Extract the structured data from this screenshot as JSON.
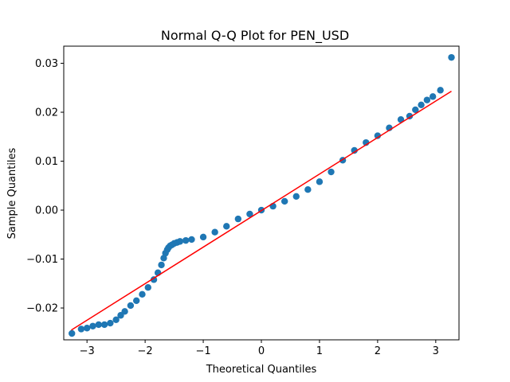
{
  "chart_data": {
    "type": "scatter",
    "title": "Normal Q-Q Plot for PEN_USD",
    "xlabel": "Theoretical Quantiles",
    "ylabel": "Sample Quantiles",
    "xlim": [
      -3.4,
      3.4
    ],
    "ylim": [
      -0.0265,
      0.0335
    ],
    "xticks": [
      -3,
      -2,
      -1,
      0,
      1,
      2,
      3
    ],
    "xtick_labels": [
      "−3",
      "−2",
      "−1",
      "0",
      "1",
      "2",
      "3"
    ],
    "yticks": [
      -0.02,
      -0.01,
      0.0,
      0.01,
      0.02,
      0.03
    ],
    "ytick_labels": [
      "−0.02",
      "−0.01",
      "0.00",
      "0.01",
      "0.02",
      "0.03"
    ],
    "grid": false,
    "series": [
      {
        "kind": "points",
        "color": "#1f77b4",
        "x": [
          -3.26,
          -3.1,
          -3.0,
          -2.9,
          -2.8,
          -2.7,
          -2.6,
          -2.5,
          -2.42,
          -2.35,
          -2.25,
          -2.15,
          -2.05,
          -1.95,
          -1.85,
          -1.78,
          -1.72,
          -1.68,
          -1.65,
          -1.62,
          -1.6,
          -1.57,
          -1.54,
          -1.5,
          -1.45,
          -1.4,
          -1.3,
          -1.2,
          -1.0,
          -0.8,
          -0.6,
          -0.4,
          -0.2,
          0.0,
          0.2,
          0.4,
          0.6,
          0.8,
          1.0,
          1.2,
          1.4,
          1.6,
          1.8,
          2.0,
          2.2,
          2.4,
          2.55,
          2.65,
          2.75,
          2.85,
          2.95,
          3.08,
          3.27
        ],
        "y": [
          -0.0252,
          -0.0243,
          -0.0241,
          -0.0237,
          -0.0234,
          -0.0234,
          -0.0231,
          -0.0224,
          -0.0215,
          -0.0207,
          -0.0195,
          -0.0185,
          -0.0172,
          -0.0158,
          -0.0142,
          -0.0128,
          -0.0112,
          -0.0098,
          -0.0088,
          -0.0081,
          -0.0077,
          -0.0073,
          -0.0071,
          -0.0068,
          -0.0066,
          -0.0064,
          -0.0062,
          -0.006,
          -0.0055,
          -0.0045,
          -0.0033,
          -0.0018,
          -0.0008,
          0.0,
          0.0008,
          0.0018,
          0.0028,
          0.0042,
          0.0058,
          0.0078,
          0.0102,
          0.0122,
          0.0138,
          0.0152,
          0.0168,
          0.0185,
          0.0192,
          0.0205,
          0.0215,
          0.0225,
          0.0232,
          0.0245,
          0.0312
        ]
      },
      {
        "kind": "reference-line",
        "color": "#ff0000",
        "x": [
          -3.27,
          3.27
        ],
        "y": [
          -0.0245,
          0.0243
        ]
      }
    ]
  }
}
